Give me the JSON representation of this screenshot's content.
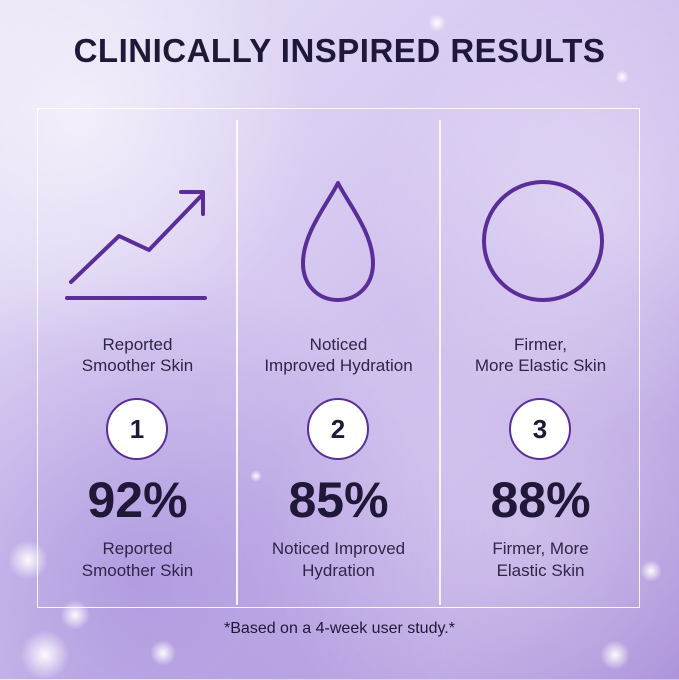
{
  "header": {
    "title": "CLINICALLY INSPIRED RESULTS"
  },
  "results": [
    {
      "icon": "trend-up-icon",
      "label_line1": "Reported",
      "label_line2": "Smoother Skin",
      "number": "1",
      "percent": "92%",
      "desc_line1": "Reported",
      "desc_line2": "Smoother Skin"
    },
    {
      "icon": "water-drop-icon",
      "label_line1": "Noticed",
      "label_line2": "Improved Hydration",
      "number": "2",
      "percent": "85%",
      "desc_line1": "Noticed Improved",
      "desc_line2": "Hydration"
    },
    {
      "icon": "circle-icon",
      "label_line1": "Firmer,",
      "label_line2": "More Elastic Skin",
      "number": "3",
      "percent": "88%",
      "desc_line1": "Firmer, More",
      "desc_line2": "Elastic Skin"
    }
  ],
  "footer": {
    "note": "*Based on a 4-week user study.*"
  },
  "colors": {
    "accent": "#5a2d99",
    "text": "#1f1838"
  }
}
